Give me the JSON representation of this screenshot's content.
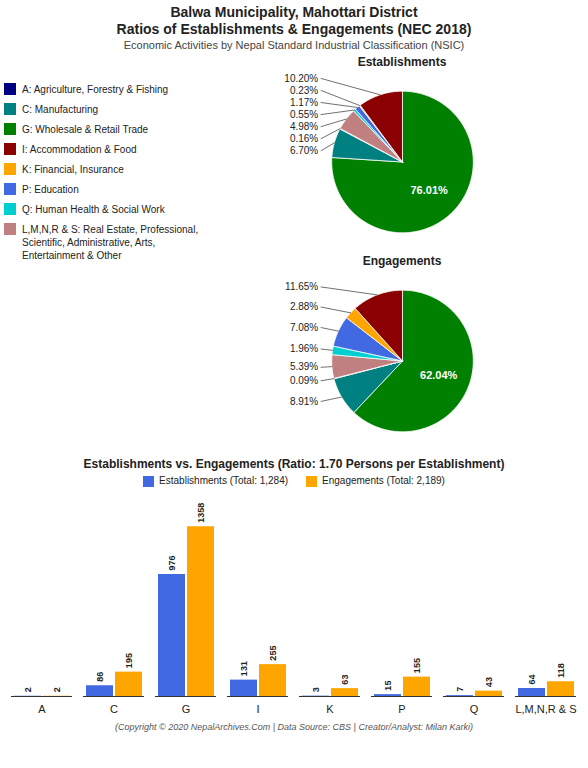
{
  "title": "Balwa Municipality, Mahottari District\nRatios of Establishments & Engagements (NEC 2018)",
  "subtitle": "Economic Activities by Nepal Standard Industrial Classification (NSIC)",
  "caption": "(Copyright © 2020 NepalArchives.Com | Data Source: CBS | Creator/Analyst: Milan Karki)",
  "chart_data": [
    {
      "type": "legend",
      "categories": [
        "A: Agriculture, Forestry & Fishing",
        "C: Manufacturing",
        "G: Wholesale & Retail Trade",
        "I: Accommodation & Food",
        "K: Financial, Insurance",
        "P: Education",
        "Q: Human Health & Social Work",
        "L,M,N,R & S: Real Estate, Professional,\nScientific, Administrative, Arts,\nEntertainment & Other"
      ],
      "colors": [
        "#000080",
        "#008080",
        "#008000",
        "#8B0000",
        "#FFA500",
        "#4169E1",
        "#00CED1",
        "#C08080"
      ]
    },
    {
      "type": "pie",
      "title": "Establishments",
      "values": [
        76.01,
        6.7,
        0.16,
        4.98,
        0.55,
        1.17,
        0.23,
        10.2
      ],
      "value_labels": [
        "76.01%",
        "6.70%",
        "0.16%",
        "4.98%",
        "0.55%",
        "1.17%",
        "0.23%",
        "10.20%"
      ],
      "colors": [
        "#008000",
        "#008080",
        "#000080",
        "#C08080",
        "#00CED1",
        "#4169E1",
        "#FFA500",
        "#8B0000"
      ],
      "data_labels": true
    },
    {
      "type": "pie",
      "title": "Engagements",
      "values": [
        62.04,
        8.91,
        0.09,
        5.39,
        1.96,
        7.08,
        2.88,
        11.65
      ],
      "value_labels": [
        "62.04%",
        "8.91%",
        "0.09%",
        "5.39%",
        "1.96%",
        "7.08%",
        "2.88%",
        "11.65%"
      ],
      "colors": [
        "#008000",
        "#008080",
        "#000080",
        "#C08080",
        "#00CED1",
        "#4169E1",
        "#FFA500",
        "#8B0000"
      ],
      "data_labels": true
    },
    {
      "type": "bar",
      "title": "Establishments vs. Engagements (Ratio: 1.70 Persons per Establishment)",
      "categories": [
        "A",
        "C",
        "G",
        "I",
        "K",
        "P",
        "Q",
        "L,M,N,R & S"
      ],
      "series": [
        {
          "name": "Establishments (Total: 1,284)",
          "color": "#4169E1",
          "values": [
            2,
            86,
            976,
            131,
            3,
            15,
            7,
            64
          ]
        },
        {
          "name": "Engagements (Total: 2,189)",
          "color": "#FFA500",
          "values": [
            2,
            195,
            1358,
            255,
            63,
            155,
            43,
            118
          ]
        }
      ],
      "ylim": [
        0,
        1600
      ],
      "tick_labels": "x",
      "data_labels": true,
      "legend": "top",
      "grid": false
    }
  ]
}
